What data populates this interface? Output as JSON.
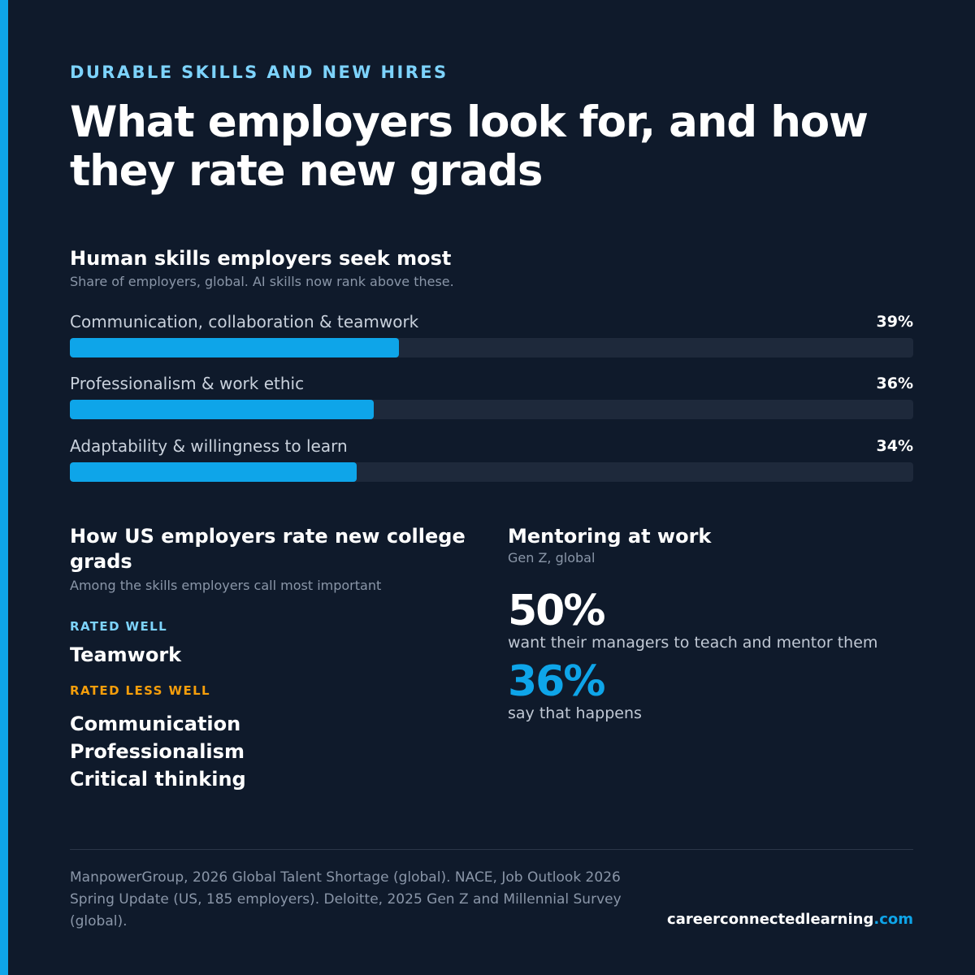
{
  "eyebrow": "DURABLE SKILLS AND NEW HIRES",
  "headline": "What employers look for, and how they rate new grads",
  "skills_section": {
    "title": "Human skills employers seek most",
    "subtitle": "Share of employers, global. AI skills now rank above these.",
    "items": [
      {
        "label": "Communication, collaboration & teamwork",
        "value_text": "39%",
        "fraction": 0.39
      },
      {
        "label": "Professionalism & work ethic",
        "value_text": "36%",
        "fraction": 0.36
      },
      {
        "label": "Adaptability & willingness to learn",
        "value_text": "34%",
        "fraction": 0.34
      }
    ]
  },
  "ratings_section": {
    "title": "How US employers rate new college grads",
    "subtitle": "Among the skills employers call most important",
    "rated_well_label": "RATED WELL",
    "rated_well": [
      "Teamwork"
    ],
    "rated_less_label": "RATED LESS WELL",
    "rated_less": [
      "Communication",
      "Professionalism",
      "Critical thinking"
    ]
  },
  "mentoring_section": {
    "title": "Mentoring at work",
    "subtitle": "Gen Z, global",
    "stats": [
      {
        "value": "50%",
        "desc": "want their managers to teach and mentor them"
      },
      {
        "value": "36%",
        "desc": "say that happens"
      }
    ]
  },
  "footer": {
    "sources": "ManpowerGroup, 2026 Global Talent Shortage (global). NACE, Job Outlook 2026 Spring Update (US, 185 employers). Deloitte, 2025 Gen Z and Millennial Survey (global).",
    "site_name": "careerconnectedlearning",
    "site_tld": ".com"
  },
  "colors": {
    "background": "#0f1a2b",
    "accent": "#0ea5e9",
    "eyebrow": "#7dd3fc",
    "warning": "#f59e0b",
    "track": "#1e293b"
  }
}
